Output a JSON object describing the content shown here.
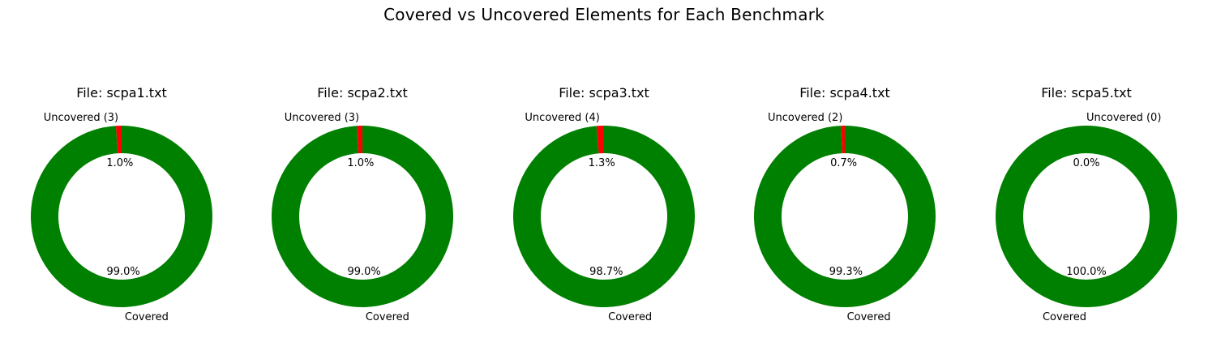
{
  "suptitle": "Covered vs Uncovered Elements for Each Benchmark",
  "colors": {
    "covered": "#008000",
    "uncovered": "#ff0000"
  },
  "chart_data": [
    {
      "type": "pie",
      "style": "donut",
      "title": "File: scpa1.txt",
      "labels": [
        "Uncovered (3)",
        "Covered"
      ],
      "values": [
        3,
        297
      ],
      "pct_labels": [
        "1.0%",
        "99.0%"
      ]
    },
    {
      "type": "pie",
      "style": "donut",
      "title": "File: scpa2.txt",
      "labels": [
        "Uncovered (3)",
        "Covered"
      ],
      "values": [
        3,
        297
      ],
      "pct_labels": [
        "1.0%",
        "99.0%"
      ]
    },
    {
      "type": "pie",
      "style": "donut",
      "title": "File: scpa3.txt",
      "labels": [
        "Uncovered (4)",
        "Covered"
      ],
      "values": [
        4,
        296
      ],
      "pct_labels": [
        "1.3%",
        "98.7%"
      ]
    },
    {
      "type": "pie",
      "style": "donut",
      "title": "File: scpa4.txt",
      "labels": [
        "Uncovered (2)",
        "Covered"
      ],
      "values": [
        2,
        298
      ],
      "pct_labels": [
        "0.7%",
        "99.3%"
      ]
    },
    {
      "type": "pie",
      "style": "donut",
      "title": "File: scpa5.txt",
      "labels": [
        "Uncovered (0)",
        "Covered"
      ],
      "values": [
        0,
        300
      ],
      "pct_labels": [
        "0.0%",
        "100.0%"
      ]
    }
  ]
}
